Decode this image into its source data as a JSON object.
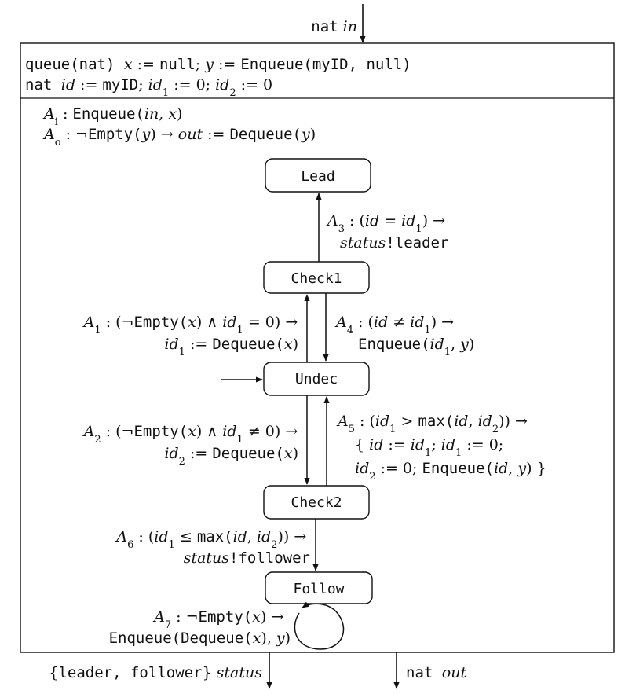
{
  "input_port": {
    "type": "nat",
    "name": "in"
  },
  "declarations": {
    "line1": [
      {
        "t": "queue(nat) ",
        "f": "mono"
      },
      {
        "t": "x",
        "f": "ital"
      },
      {
        "t": " := ",
        "f": "serif"
      },
      {
        "t": "null",
        "f": "mono"
      },
      {
        "t": "; ",
        "f": "serif"
      },
      {
        "t": "y",
        "f": "ital"
      },
      {
        "t": " := ",
        "f": "serif"
      },
      {
        "t": "Enqueue(myID, null)",
        "f": "mono"
      }
    ],
    "line2": [
      {
        "t": "nat ",
        "f": "mono"
      },
      {
        "t": "id",
        "f": "ital"
      },
      {
        "t": " := ",
        "f": "serif"
      },
      {
        "t": "myID",
        "f": "mono"
      },
      {
        "t": "; ",
        "f": "serif"
      },
      {
        "t": "id",
        "f": "ital"
      },
      {
        "t": "1",
        "f": "sub"
      },
      {
        "t": " := 0; ",
        "f": "serif"
      },
      {
        "t": "id",
        "f": "ital"
      },
      {
        "t": "2",
        "f": "sub"
      },
      {
        "t": " := 0",
        "f": "serif"
      }
    ]
  },
  "actions": {
    "Ai": [
      {
        "t": "A",
        "f": "ital"
      },
      {
        "t": "i",
        "f": "sub"
      },
      {
        "t": " :  ",
        "f": "serif"
      },
      {
        "t": "Enqueue(",
        "f": "mono"
      },
      {
        "t": "in",
        "f": "ital"
      },
      {
        "t": ", ",
        "f": "serif"
      },
      {
        "t": "x",
        "f": "ital"
      },
      {
        "t": ")",
        "f": "serif"
      }
    ],
    "Ao": [
      {
        "t": "A",
        "f": "ital"
      },
      {
        "t": "o",
        "f": "sub"
      },
      {
        "t": " :  ¬",
        "f": "serif"
      },
      {
        "t": "Empty(",
        "f": "mono"
      },
      {
        "t": "y",
        "f": "ital"
      },
      {
        "t": ") → ",
        "f": "serif"
      },
      {
        "t": "out",
        "f": "ital"
      },
      {
        "t": " := ",
        "f": "serif"
      },
      {
        "t": "Dequeue(",
        "f": "mono"
      },
      {
        "t": "y",
        "f": "ital"
      },
      {
        "t": ")",
        "f": "serif"
      }
    ]
  },
  "states": {
    "lead": "Lead",
    "check1": "Check1",
    "undec": "Undec",
    "check2": "Check2",
    "follow": "Follow"
  },
  "transitions": {
    "A3": [
      [
        {
          "t": "A",
          "f": "ital"
        },
        {
          "t": "3",
          "f": "sub"
        },
        {
          "t": " : (",
          "f": "serif"
        },
        {
          "t": "id",
          "f": "ital"
        },
        {
          "t": " = ",
          "f": "serif"
        },
        {
          "t": "id",
          "f": "ital"
        },
        {
          "t": "1",
          "f": "sub"
        },
        {
          "t": ") →",
          "f": "serif"
        }
      ],
      [
        {
          "t": "status",
          "f": "ital"
        },
        {
          "t": "!leader",
          "f": "mono"
        }
      ]
    ],
    "A1": [
      [
        {
          "t": "A",
          "f": "ital"
        },
        {
          "t": "1",
          "f": "sub"
        },
        {
          "t": " : (¬",
          "f": "serif"
        },
        {
          "t": "Empty(",
          "f": "mono"
        },
        {
          "t": "x",
          "f": "ital"
        },
        {
          "t": ") ∧ ",
          "f": "serif"
        },
        {
          "t": "id",
          "f": "ital"
        },
        {
          "t": "1",
          "f": "sub"
        },
        {
          "t": " = 0) →",
          "f": "serif"
        }
      ],
      [
        {
          "t": "id",
          "f": "ital"
        },
        {
          "t": "1",
          "f": "sub"
        },
        {
          "t": " := ",
          "f": "serif"
        },
        {
          "t": "Dequeue(",
          "f": "mono"
        },
        {
          "t": "x",
          "f": "ital"
        },
        {
          "t": ")",
          "f": "serif"
        }
      ]
    ],
    "A4": [
      [
        {
          "t": "A",
          "f": "ital"
        },
        {
          "t": "4",
          "f": "sub"
        },
        {
          "t": " : (",
          "f": "serif"
        },
        {
          "t": "id",
          "f": "ital"
        },
        {
          "t": " ≠ ",
          "f": "serif"
        },
        {
          "t": "id",
          "f": "ital"
        },
        {
          "t": "1",
          "f": "sub"
        },
        {
          "t": ") →",
          "f": "serif"
        }
      ],
      [
        {
          "t": "Enqueue(",
          "f": "mono"
        },
        {
          "t": "id",
          "f": "ital"
        },
        {
          "t": "1",
          "f": "sub"
        },
        {
          "t": ", ",
          "f": "serif"
        },
        {
          "t": "y",
          "f": "ital"
        },
        {
          "t": ")",
          "f": "serif"
        }
      ]
    ],
    "A2": [
      [
        {
          "t": "A",
          "f": "ital"
        },
        {
          "t": "2",
          "f": "sub"
        },
        {
          "t": " : (¬",
          "f": "serif"
        },
        {
          "t": "Empty(",
          "f": "mono"
        },
        {
          "t": "x",
          "f": "ital"
        },
        {
          "t": ") ∧ ",
          "f": "serif"
        },
        {
          "t": "id",
          "f": "ital"
        },
        {
          "t": "1",
          "f": "sub"
        },
        {
          "t": " ≠ 0) →",
          "f": "serif"
        }
      ],
      [
        {
          "t": "id",
          "f": "ital"
        },
        {
          "t": "2",
          "f": "sub"
        },
        {
          "t": " := ",
          "f": "serif"
        },
        {
          "t": "Dequeue(",
          "f": "mono"
        },
        {
          "t": "x",
          "f": "ital"
        },
        {
          "t": ")",
          "f": "serif"
        }
      ]
    ],
    "A5": [
      [
        {
          "t": "A",
          "f": "ital"
        },
        {
          "t": "5",
          "f": "sub"
        },
        {
          "t": " : (",
          "f": "serif"
        },
        {
          "t": "id",
          "f": "ital"
        },
        {
          "t": "1",
          "f": "sub"
        },
        {
          "t": " > ",
          "f": "serif"
        },
        {
          "t": "max(",
          "f": "mono"
        },
        {
          "t": "id",
          "f": "ital"
        },
        {
          "t": ", ",
          "f": "serif"
        },
        {
          "t": "id",
          "f": "ital"
        },
        {
          "t": "2",
          "f": "sub"
        },
        {
          "t": ")) →",
          "f": "serif"
        }
      ],
      [
        {
          "t": "{ ",
          "f": "serif"
        },
        {
          "t": "id",
          "f": "ital"
        },
        {
          "t": " := ",
          "f": "serif"
        },
        {
          "t": "id",
          "f": "ital"
        },
        {
          "t": "1",
          "f": "sub"
        },
        {
          "t": "; ",
          "f": "serif"
        },
        {
          "t": "id",
          "f": "ital"
        },
        {
          "t": "1",
          "f": "sub"
        },
        {
          "t": " := 0;",
          "f": "serif"
        }
      ],
      [
        {
          "t": "id",
          "f": "ital"
        },
        {
          "t": "2",
          "f": "sub"
        },
        {
          "t": " := 0; ",
          "f": "serif"
        },
        {
          "t": "Enqueue(",
          "f": "mono"
        },
        {
          "t": "id",
          "f": "ital"
        },
        {
          "t": ", ",
          "f": "serif"
        },
        {
          "t": "y",
          "f": "ital"
        },
        {
          "t": ") }",
          "f": "serif"
        }
      ]
    ],
    "A6": [
      [
        {
          "t": "A",
          "f": "ital"
        },
        {
          "t": "6",
          "f": "sub"
        },
        {
          "t": " : (",
          "f": "serif"
        },
        {
          "t": "id",
          "f": "ital"
        },
        {
          "t": "1",
          "f": "sub"
        },
        {
          "t": " ≤ ",
          "f": "serif"
        },
        {
          "t": "max(",
          "f": "mono"
        },
        {
          "t": "id",
          "f": "ital"
        },
        {
          "t": ", ",
          "f": "serif"
        },
        {
          "t": "id",
          "f": "ital"
        },
        {
          "t": "2",
          "f": "sub"
        },
        {
          "t": ")) →",
          "f": "serif"
        }
      ],
      [
        {
          "t": "status",
          "f": "ital"
        },
        {
          "t": "!follower",
          "f": "mono"
        }
      ]
    ],
    "A7": [
      [
        {
          "t": "A",
          "f": "ital"
        },
        {
          "t": "7",
          "f": "sub"
        },
        {
          "t": " :  ¬",
          "f": "serif"
        },
        {
          "t": "Empty(",
          "f": "mono"
        },
        {
          "t": "x",
          "f": "ital"
        },
        {
          "t": ") →",
          "f": "serif"
        }
      ],
      [
        {
          "t": "Enqueue(Dequeue(",
          "f": "mono"
        },
        {
          "t": "x",
          "f": "ital"
        },
        {
          "t": "), ",
          "f": "serif"
        },
        {
          "t": "y",
          "f": "ital"
        },
        {
          "t": ")",
          "f": "serif"
        }
      ]
    ]
  },
  "output_ports": {
    "status": [
      {
        "t": "{",
        "f": "serif"
      },
      {
        "t": "leader, follower",
        "f": "mono"
      },
      {
        "t": "} ",
        "f": "serif"
      },
      {
        "t": "status",
        "f": "ital"
      }
    ],
    "out": [
      {
        "t": "nat ",
        "f": "mono"
      },
      {
        "t": "out",
        "f": "ital"
      }
    ]
  }
}
